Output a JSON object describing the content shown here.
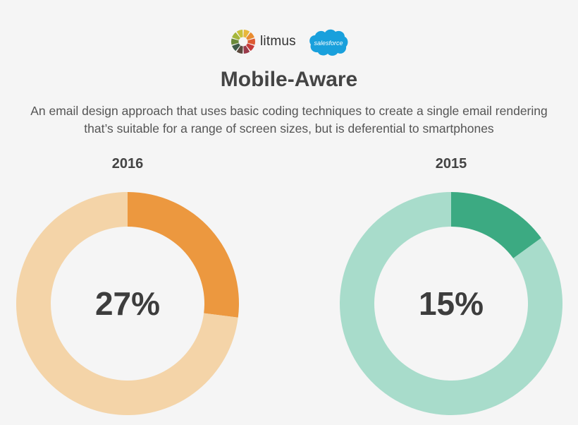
{
  "brand": {
    "litmus_name": "litmus",
    "salesforce_name": "salesforce"
  },
  "title": "Mobile-Aware",
  "subtitle_line1": "An email design approach that uses basic coding techniques to create a single email rendering",
  "subtitle_line2": "that’s suitable for a range of screen sizes, but is deferential to smartphones",
  "chart_data": [
    {
      "type": "pie",
      "title": "2016",
      "value_label": "27%",
      "slices": [
        {
          "value": 27,
          "color": "#ec983f"
        },
        {
          "value": 73,
          "color": "#f4d4a8"
        }
      ]
    },
    {
      "type": "pie",
      "title": "2015",
      "value_label": "15%",
      "slices": [
        {
          "value": 15,
          "color": "#3caa82"
        },
        {
          "value": 85,
          "color": "#a8dccb"
        }
      ]
    }
  ]
}
